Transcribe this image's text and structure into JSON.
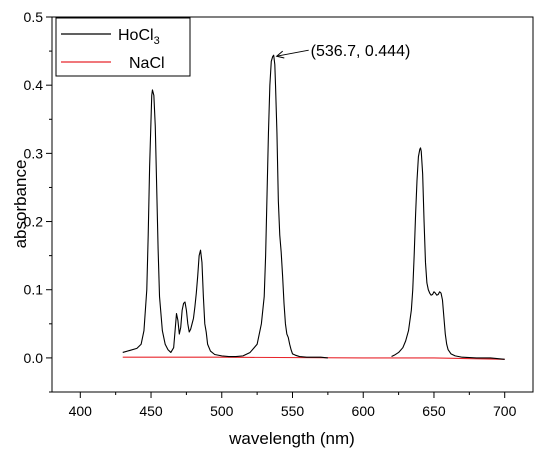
{
  "chart_data": {
    "type": "line",
    "xlabel": "wavelength (nm)",
    "ylabel": "absorbance",
    "xlim": [
      380,
      720
    ],
    "ylim": [
      -0.05,
      0.5
    ],
    "x_ticks": [
      "400",
      "450",
      "500",
      "550",
      "600",
      "650",
      "700"
    ],
    "y_ticks": [
      "0.0",
      "0.1",
      "0.2",
      "0.3",
      "0.4",
      "0.5"
    ],
    "grid": false,
    "legend_position": "top-left",
    "series": [
      {
        "name": "HoCl3",
        "legend_main": "HoCl",
        "legend_sub": "3",
        "color": "#000000",
        "x": [
          430,
          435,
          440,
          443,
          445,
          447,
          448,
          449,
          450,
          450.5,
          451,
          452,
          453,
          454,
          455,
          456,
          458,
          460,
          462,
          464,
          466,
          467,
          468,
          469,
          470,
          471,
          472,
          473,
          474,
          475,
          476,
          477,
          478,
          479,
          480,
          481,
          482,
          483,
          484,
          485,
          486,
          487,
          488,
          489,
          490,
          492,
          495,
          500,
          505,
          510,
          515,
          520,
          525,
          528,
          530,
          531,
          532,
          533,
          534,
          535,
          536,
          536.7,
          537.5,
          538,
          539,
          540,
          541,
          542,
          543,
          544,
          545,
          546,
          547,
          548,
          549,
          550,
          552,
          555,
          560,
          570,
          575
        ],
        "y": [
          0.008,
          0.011,
          0.014,
          0.02,
          0.04,
          0.1,
          0.18,
          0.28,
          0.35,
          0.385,
          0.393,
          0.385,
          0.34,
          0.25,
          0.16,
          0.09,
          0.04,
          0.02,
          0.012,
          0.008,
          0.015,
          0.04,
          0.065,
          0.055,
          0.035,
          0.045,
          0.07,
          0.08,
          0.082,
          0.07,
          0.05,
          0.038,
          0.042,
          0.05,
          0.058,
          0.075,
          0.095,
          0.12,
          0.15,
          0.158,
          0.14,
          0.09,
          0.05,
          0.038,
          0.02,
          0.01,
          0.005,
          0.003,
          0.002,
          0.002,
          0.003,
          0.008,
          0.02,
          0.05,
          0.09,
          0.15,
          0.24,
          0.33,
          0.4,
          0.435,
          0.442,
          0.444,
          0.43,
          0.4,
          0.33,
          0.23,
          0.18,
          0.155,
          0.12,
          0.08,
          0.05,
          0.035,
          0.03,
          0.02,
          0.012,
          0.006,
          0.004,
          0.002,
          0.001,
          0.001,
          0.0
        ]
      },
      {
        "name": "HoCl3",
        "color": "#000000",
        "x": [
          620,
          622,
          625,
          628,
          630,
          632,
          634,
          635,
          636,
          637,
          638,
          639,
          640,
          640.5,
          641,
          642,
          643,
          644,
          645,
          646,
          647,
          648,
          649,
          650,
          651,
          652,
          653,
          654,
          655,
          656,
          657,
          658,
          659,
          660,
          662,
          665,
          670,
          680,
          690,
          700
        ],
        "y": [
          0.002,
          0.004,
          0.008,
          0.015,
          0.025,
          0.04,
          0.07,
          0.1,
          0.15,
          0.21,
          0.26,
          0.295,
          0.306,
          0.308,
          0.303,
          0.27,
          0.2,
          0.14,
          0.11,
          0.1,
          0.095,
          0.092,
          0.093,
          0.097,
          0.095,
          0.092,
          0.093,
          0.097,
          0.095,
          0.085,
          0.06,
          0.035,
          0.02,
          0.012,
          0.006,
          0.003,
          0.001,
          0.0,
          0.0,
          -0.002
        ]
      },
      {
        "name": "NaCl",
        "color": "#e8262c",
        "x": [
          430,
          500,
          600,
          650,
          700
        ],
        "y": [
          0.001,
          0.001,
          0.0,
          0.0,
          -0.002
        ]
      }
    ],
    "annotation": {
      "text": "(536.7, 0.444)",
      "x": 536.7,
      "y": 0.444
    }
  }
}
